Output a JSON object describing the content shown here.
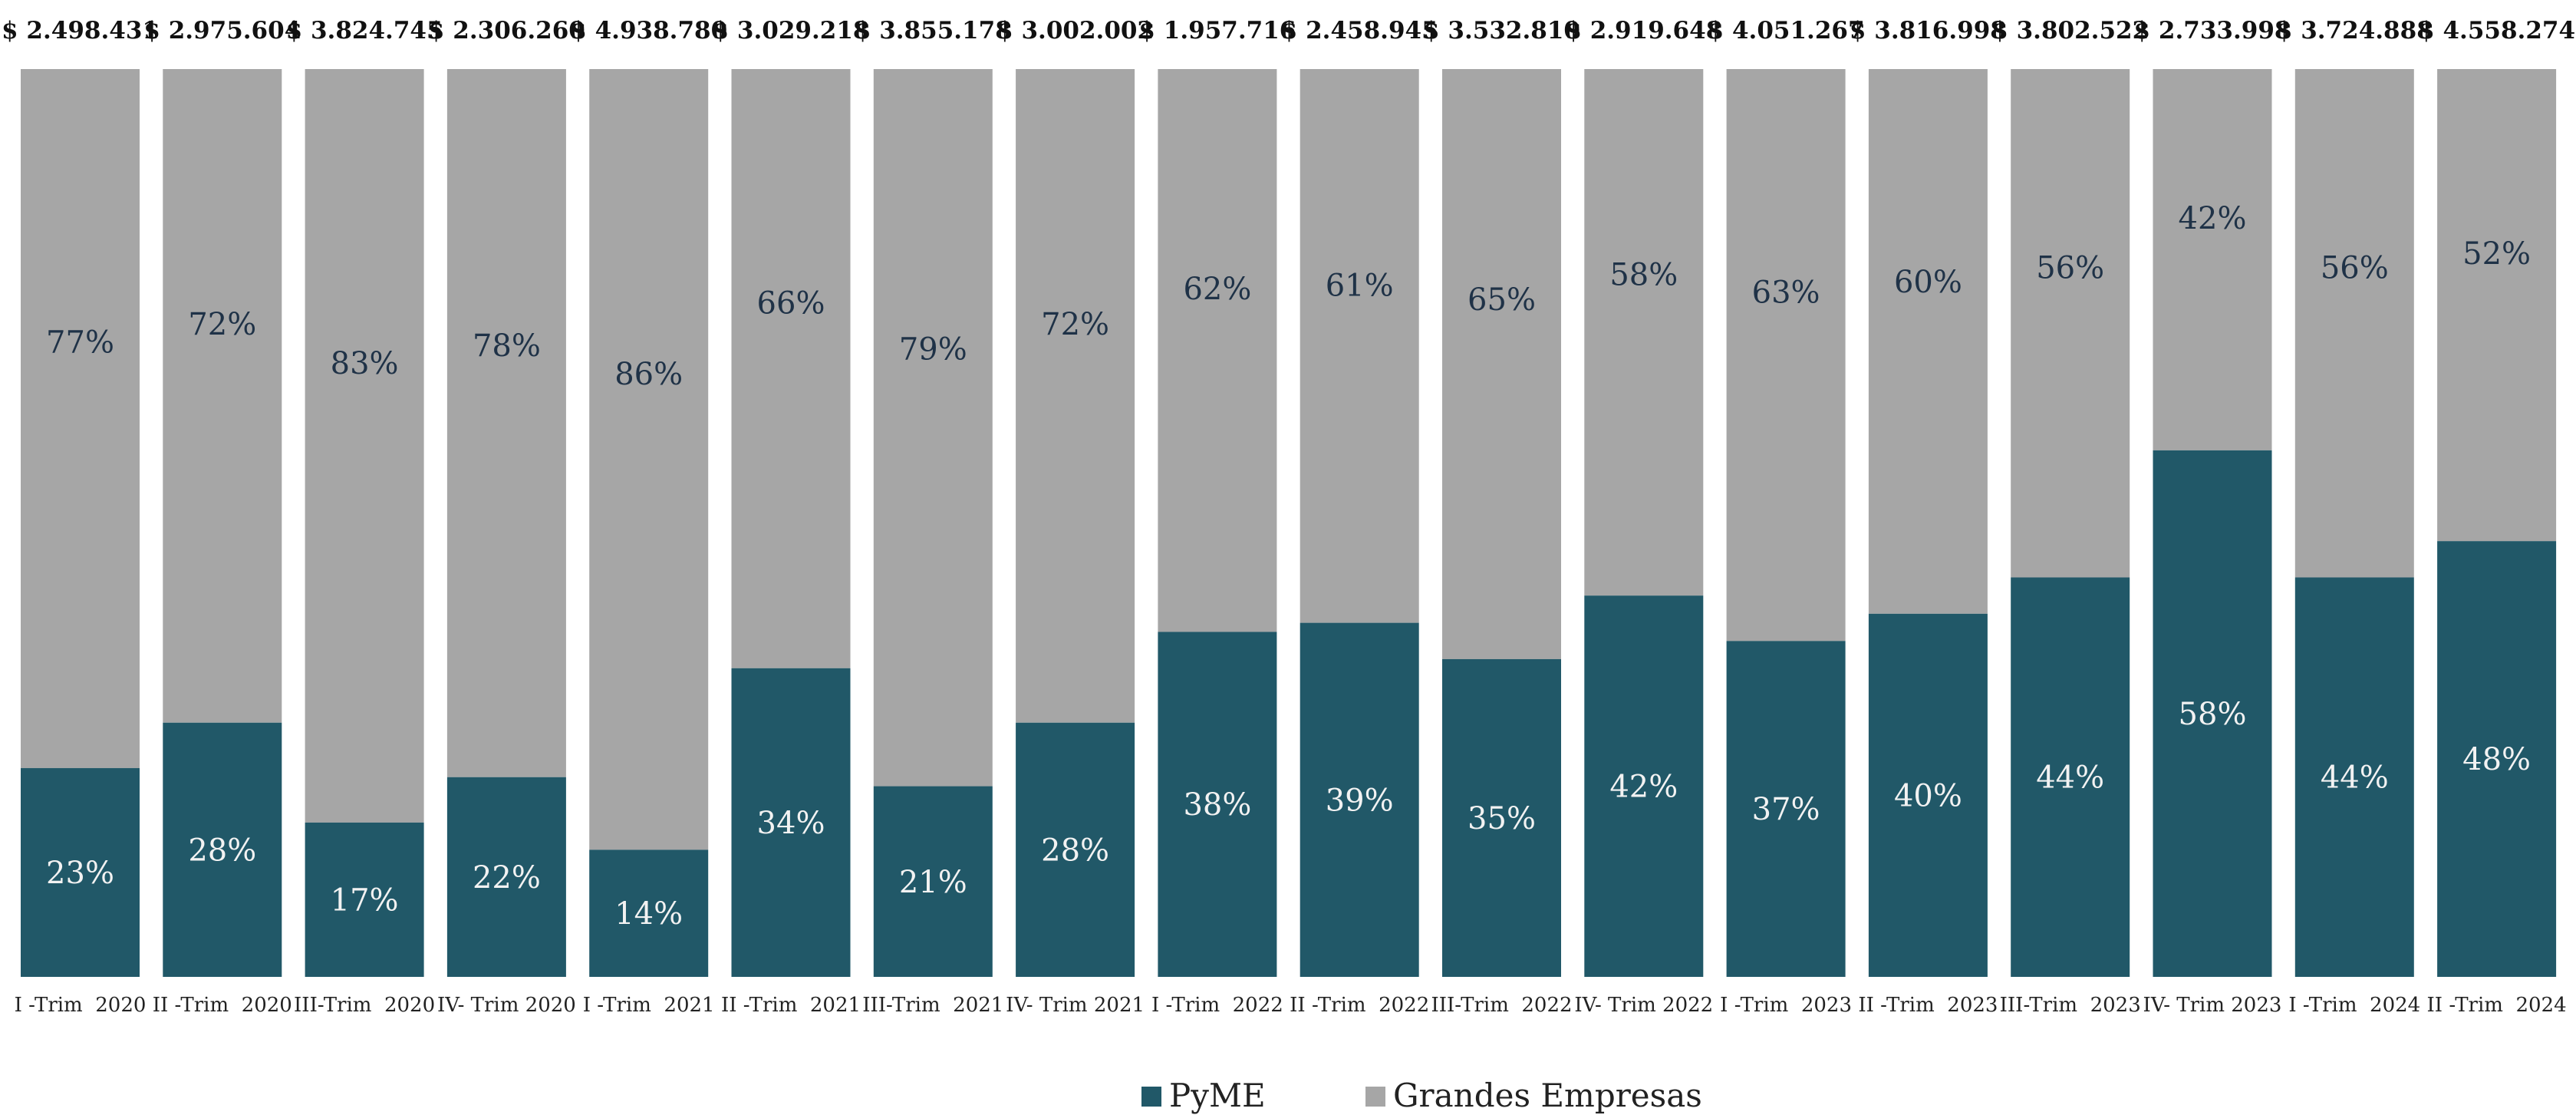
{
  "chart_data": {
    "type": "bar",
    "stacked": true,
    "percent_stacked": true,
    "categories": [
      "I -Trim  2020",
      "II -Trim  2020",
      "III-Trim  2020",
      "IV- Trim 2020",
      "I -Trim  2021",
      "II -Trim  2021",
      "III-Trim  2021",
      "IV- Trim 2021",
      "I -Trim  2022",
      "II -Trim  2022",
      "III-Trim  2022",
      "IV- Trim 2022",
      "I -Trim  2023",
      "II -Trim  2023",
      "III-Trim  2023",
      "IV- Trim 2023",
      "I -Trim  2024",
      "II -Trim  2024"
    ],
    "totals": [
      "$ 2.498.431",
      "$ 2.975.604",
      "$ 3.824.745",
      "$ 2.306.260",
      "$ 4.938.780",
      "$ 3.029.218",
      "$ 3.855.178",
      "$ 3.002.002",
      "$ 1.957.716",
      "$ 2.458.945",
      "$ 3.532.810",
      "$ 2.919.648",
      "$ 4.051.267",
      "$ 3.816.998",
      "$ 3.802.522",
      "$ 2.733.998",
      "$ 3.724.888",
      "$ 4.558.274"
    ],
    "series": [
      {
        "name": "PyME",
        "color": "#215868",
        "values": [
          23,
          28,
          17,
          22,
          14,
          34,
          21,
          28,
          38,
          39,
          35,
          42,
          37,
          40,
          44,
          58,
          44,
          48
        ],
        "labels": [
          "23%",
          "28%",
          "17%",
          "22%",
          "14%",
          "34%",
          "21%",
          "28%",
          "38%",
          "39%",
          "35%",
          "42%",
          "37%",
          "40%",
          "44%",
          "58%",
          "44%",
          "48%"
        ]
      },
      {
        "name": "Grandes Empresas",
        "color": "#a6a6a6",
        "values": [
          77,
          72,
          83,
          78,
          86,
          66,
          79,
          72,
          62,
          61,
          65,
          58,
          63,
          60,
          56,
          42,
          56,
          52
        ],
        "labels": [
          "77%",
          "72%",
          "83%",
          "78%",
          "86%",
          "66%",
          "79%",
          "72%",
          "62%",
          "61%",
          "65%",
          "58%",
          "63%",
          "60%",
          "56%",
          "42%",
          "56%",
          "52%"
        ]
      }
    ],
    "ylim": [
      0,
      100
    ],
    "grid": false,
    "legend_position": "bottom-center",
    "highlight_label_color": "#f5e6b8",
    "highlight_label_index": 17
  },
  "legend": {
    "items": [
      {
        "label": "PyME",
        "color": "#215868"
      },
      {
        "label": "Grandes Empresas",
        "color": "#a6a6a6"
      }
    ]
  }
}
